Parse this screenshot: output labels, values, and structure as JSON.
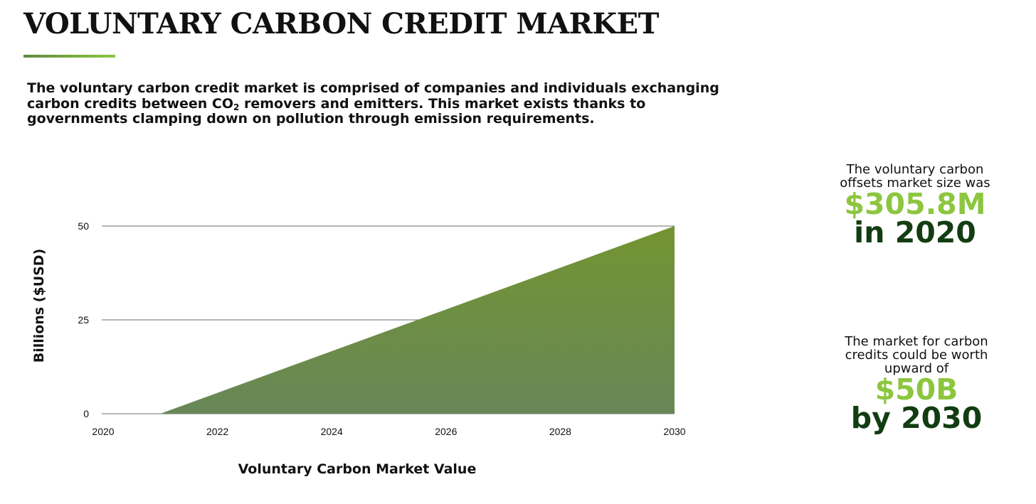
{
  "page": {
    "title": "VOLUNTARY CARBON CREDIT MARKET",
    "intro_part1": "The voluntary carbon credit market is comprised of companies and individuals exchanging carbon credits between CO",
    "intro_sub": "2",
    "intro_part2": " removers and emitters. This market exists thanks to governments clamping down on pollution through emission requirements.",
    "accent_color": "#8cc63f",
    "dark_green": "#123d12"
  },
  "chart_data": {
    "type": "area",
    "title": "Voluntary Carbon Market Value",
    "xlabel": "Voluntary Carbon Market Value",
    "ylabel": "Billions ($USD)",
    "x": [
      2020,
      2021,
      2030
    ],
    "values": [
      0,
      0,
      50
    ],
    "x_ticks": [
      "2020",
      "2022",
      "2024",
      "2026",
      "2028",
      "2030"
    ],
    "y_ticks": [
      "0",
      "25",
      "50"
    ],
    "xlim": [
      2020,
      2030
    ],
    "ylim": [
      0,
      50
    ],
    "grid": true,
    "fill_color_top": "#739431",
    "fill_color_bottom": "#678758"
  },
  "stats": [
    {
      "caption_line1": "The voluntary carbon",
      "caption_line2": "offsets market size was",
      "value": "$305.8M",
      "year_text": "in 2020"
    },
    {
      "caption_line1": "The market for carbon",
      "caption_line2": "credits could be worth",
      "caption_line3": "upward of",
      "value": "$50B",
      "year_text": "by 2030"
    }
  ]
}
